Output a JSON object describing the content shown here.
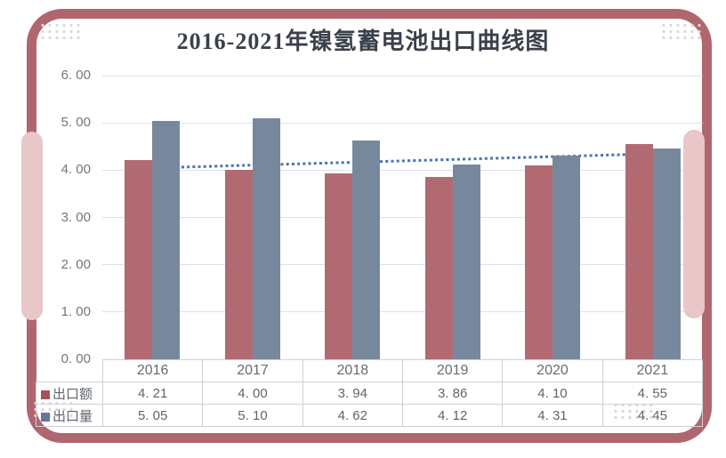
{
  "title": "2016-2021年镍氢蓄电池出口曲线图",
  "frame": {
    "border_color": "#b0666e",
    "tab_color": "#e9c6c8",
    "corner_dot_color": "#d9d9d9"
  },
  "chart_data": {
    "type": "bar",
    "title": "2016-2021年镍氢蓄电池出口曲线图",
    "categories": [
      "2016",
      "2017",
      "2018",
      "2019",
      "2020",
      "2021"
    ],
    "series": [
      {
        "name": "出口额",
        "key": "export-value",
        "color": "#b26a72",
        "legend_color": "#a8525a",
        "values": [
          4.21,
          4.0,
          3.94,
          3.86,
          4.1,
          4.55
        ]
      },
      {
        "name": "出口量",
        "key": "export-volume",
        "color": "#78889c",
        "legend_color": "#64779b",
        "values": [
          5.05,
          5.1,
          4.62,
          4.12,
          4.31,
          4.45
        ]
      }
    ],
    "trendline": {
      "style": "dotted",
      "color": "#4973aa",
      "start_value": 4.03,
      "end_value": 4.33
    },
    "ylim": [
      0,
      6
    ],
    "ytick_interval": 1,
    "ytick_labels": [
      "0. 00",
      "1. 00",
      "2. 00",
      "3. 00",
      "4. 00",
      "5. 00",
      "6. 00"
    ],
    "grid": true,
    "legend_position": "bottom-table"
  },
  "table": {
    "columns": [
      "2016",
      "2017",
      "2018",
      "2019",
      "2020",
      "2021"
    ],
    "rows": [
      {
        "label": "出口额",
        "key": "export-value",
        "values": [
          "4. 21",
          "4. 00",
          "3. 94",
          "3. 86",
          "4. 10",
          "4. 55"
        ]
      },
      {
        "label": "出口量",
        "key": "export-volume",
        "values": [
          "5. 05",
          "5. 10",
          "4. 62",
          "4. 12",
          "4. 31",
          "4. 45"
        ]
      }
    ]
  }
}
